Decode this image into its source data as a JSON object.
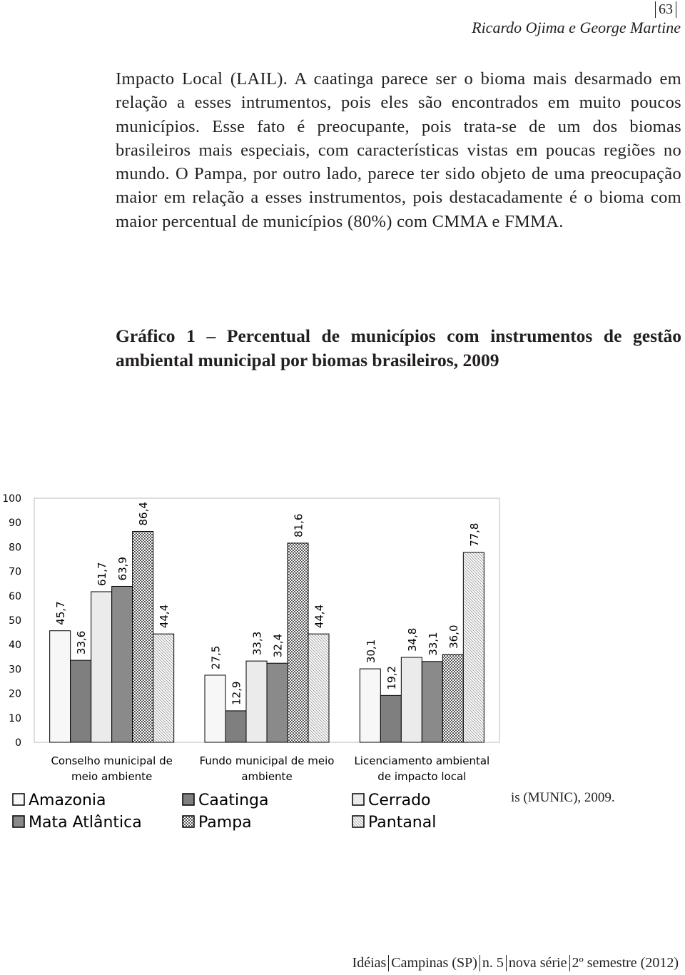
{
  "header": {
    "page_number": "63",
    "authors": "Ricardo Ojima e George Martine"
  },
  "paragraph": "Impacto Local (LAIL). A caatinga parece ser o bioma mais desarmado em relação a esses intrumentos, pois eles são encontrados em muito poucos municípios. Esse fato é preocupante, pois trata-se de um dos biomas brasileiros mais especiais, com características vistas em poucas regiões no mundo. O Pampa, por outro lado, parece ter sido objeto de uma preocupação maior em relação a esses instrumentos, pois destacadamente é o bioma com maior percentual de municípios (80%) com CMMA e FMMA.",
  "caption": "Gráfico 1 – Percentual de municípios com instrumentos de gestão ambiental municipal por biomas brasileiros, 2009",
  "chart_data": {
    "type": "bar",
    "categories": [
      "Conselho municipal de meio ambiente",
      "Fundo municipal de meio ambiente",
      "Licenciamento ambiental de impacto local"
    ],
    "series": [
      {
        "name": "Amazonia",
        "color": "#f7f7f7",
        "values": [
          45.7,
          27.5,
          30.1
        ],
        "value_labels": [
          "45,7",
          "27,5",
          "30,1"
        ]
      },
      {
        "name": "Caatinga",
        "color": "#7f7f7f",
        "values": [
          33.6,
          12.9,
          19.2
        ],
        "value_labels": [
          "33,6",
          "12,9",
          "19,2"
        ]
      },
      {
        "name": "Cerrado",
        "color": "#ebebeb",
        "values": [
          61.7,
          33.3,
          34.8
        ],
        "value_labels": [
          "61,7",
          "33,3",
          "34,8"
        ]
      },
      {
        "name": "Mata Atlântica",
        "color": "#8a8a8a",
        "values": [
          63.9,
          32.4,
          33.1
        ],
        "value_labels": [
          "63,9",
          "32,4",
          "33,1"
        ]
      },
      {
        "name": "Pampa",
        "color": "#9a9a9a",
        "pattern": "checker",
        "values": [
          86.4,
          81.6,
          36.0
        ],
        "value_labels": [
          "86,4",
          "81,6",
          "36,0"
        ]
      },
      {
        "name": "Pantanal",
        "color": "#9a9a9a",
        "pattern": "hatch",
        "values": [
          44.4,
          44.4,
          77.8
        ],
        "value_labels": [
          "44,4",
          "44,4",
          "77,8"
        ]
      }
    ],
    "ylim": [
      0,
      100
    ],
    "yticks": [
      0,
      10,
      20,
      30,
      40,
      50,
      60,
      70,
      80,
      90,
      100
    ],
    "grid": false
  },
  "source_fragment": "is (MUNIC), 2009.",
  "footer": [
    "Idéias",
    "Campinas (SP)",
    "n. 5",
    "nova série",
    "2º semestre (2012)"
  ]
}
